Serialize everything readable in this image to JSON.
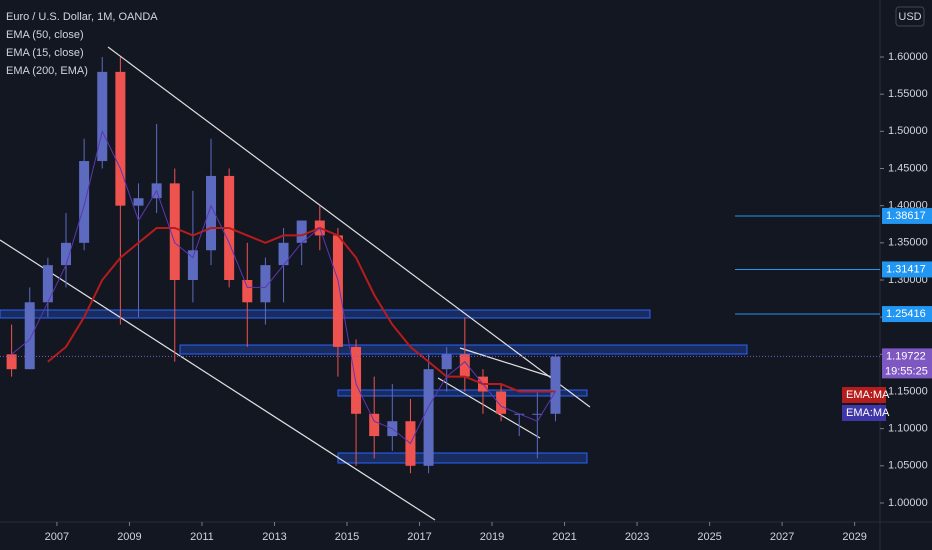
{
  "chart_data": {
    "type": "candlestick",
    "title": "Euro / U.S. Dollar, 1M, OANDA",
    "currency_button": "USD",
    "x": [
      2005.75,
      2006.25,
      2006.75,
      2007.25,
      2007.75,
      2008.25,
      2008.75,
      2009.25,
      2009.75,
      2010.25,
      2010.75,
      2011.25,
      2011.75,
      2012.25,
      2012.75,
      2013.25,
      2013.75,
      2014.25,
      2014.75,
      2015.25,
      2015.75,
      2016.25,
      2016.75,
      2017.25,
      2017.75,
      2018.25,
      2018.75,
      2019.25,
      2019.75,
      2020.25,
      2020.75
    ],
    "open": [
      1.2,
      1.18,
      1.27,
      1.32,
      1.35,
      1.46,
      1.58,
      1.4,
      1.41,
      1.43,
      1.3,
      1.34,
      1.44,
      1.3,
      1.27,
      1.32,
      1.35,
      1.38,
      1.36,
      1.21,
      1.12,
      1.09,
      1.11,
      1.05,
      1.18,
      1.2,
      1.17,
      1.15,
      1.12,
      1.12,
      1.12
    ],
    "high": [
      1.24,
      1.29,
      1.33,
      1.39,
      1.49,
      1.6,
      1.6,
      1.43,
      1.51,
      1.45,
      1.42,
      1.49,
      1.45,
      1.35,
      1.33,
      1.37,
      1.38,
      1.4,
      1.37,
      1.22,
      1.17,
      1.16,
      1.14,
      1.2,
      1.21,
      1.25,
      1.18,
      1.16,
      1.12,
      1.15,
      1.2
    ],
    "low": [
      1.17,
      1.18,
      1.25,
      1.29,
      1.34,
      1.45,
      1.24,
      1.25,
      1.39,
      1.19,
      1.27,
      1.32,
      1.29,
      1.21,
      1.24,
      1.27,
      1.32,
      1.34,
      1.17,
      1.05,
      1.06,
      1.07,
      1.04,
      1.04,
      1.15,
      1.15,
      1.12,
      1.11,
      1.09,
      1.06,
      1.11
    ],
    "close": [
      1.18,
      1.27,
      1.32,
      1.35,
      1.46,
      1.58,
      1.4,
      1.41,
      1.43,
      1.3,
      1.34,
      1.44,
      1.3,
      1.27,
      1.32,
      1.35,
      1.38,
      1.36,
      1.21,
      1.12,
      1.09,
      1.11,
      1.05,
      1.18,
      1.2,
      1.17,
      1.15,
      1.12,
      1.12,
      1.12,
      1.197
    ],
    "up_color": "#5c6bc0",
    "down_color": "#ef5350",
    "series": [
      {
        "name": "EMA (50, close)",
        "color": "#b71c1c",
        "values": [
          null,
          null,
          1.19,
          1.21,
          1.25,
          1.3,
          1.33,
          1.35,
          1.37,
          1.37,
          1.36,
          1.37,
          1.37,
          1.36,
          1.35,
          1.36,
          1.36,
          1.37,
          1.36,
          1.33,
          1.28,
          1.24,
          1.21,
          1.19,
          1.17,
          1.17,
          1.16,
          1.16,
          1.15,
          1.15,
          1.15
        ]
      },
      {
        "name": "EMA (15, close)",
        "color": "#5e35b1",
        "values": [
          1.2,
          1.22,
          1.27,
          1.32,
          1.4,
          1.5,
          1.45,
          1.38,
          1.42,
          1.35,
          1.33,
          1.4,
          1.35,
          1.29,
          1.29,
          1.32,
          1.35,
          1.37,
          1.3,
          1.16,
          1.11,
          1.1,
          1.08,
          1.13,
          1.17,
          1.19,
          1.16,
          1.13,
          1.12,
          1.11,
          1.15
        ]
      }
    ],
    "extra_indicator": "EMA (200, EMA)",
    "levels": [
      1.38617,
      1.31417,
      1.25416
    ],
    "level_color": "#2196f3",
    "last_price": 1.19722,
    "countdown": "19:55:25",
    "ema_tags": [
      "EMA:MA",
      "EMA:MA"
    ],
    "xlim": [
      2005.43,
      2029.7
    ],
    "xticks": [
      2007,
      2009,
      2011,
      2013,
      2015,
      2017,
      2019,
      2021,
      2023,
      2025,
      2027,
      2029
    ],
    "ylim": [
      0.9744,
      1.6767
    ],
    "yticks": [
      {
        "value": 1.0,
        "label": "1.00000"
      },
      {
        "value": 1.05,
        "label": "1.05000"
      },
      {
        "value": 1.1,
        "label": "1.10000"
      },
      {
        "value": 1.15,
        "label": "1.15000"
      },
      {
        "value": 1.2,
        "label": "1.20000"
      },
      {
        "value": 1.25,
        "label": "1.25000"
      },
      {
        "value": 1.3,
        "label": "1.30000"
      },
      {
        "value": 1.35,
        "label": "1.35000"
      },
      {
        "value": 1.4,
        "label": "1.40000"
      },
      {
        "value": 1.45,
        "label": "1.45000"
      },
      {
        "value": 1.5,
        "label": "1.50000"
      },
      {
        "value": 1.55,
        "label": "1.55000"
      },
      {
        "value": 1.6,
        "label": "1.60000"
      }
    ]
  }
}
